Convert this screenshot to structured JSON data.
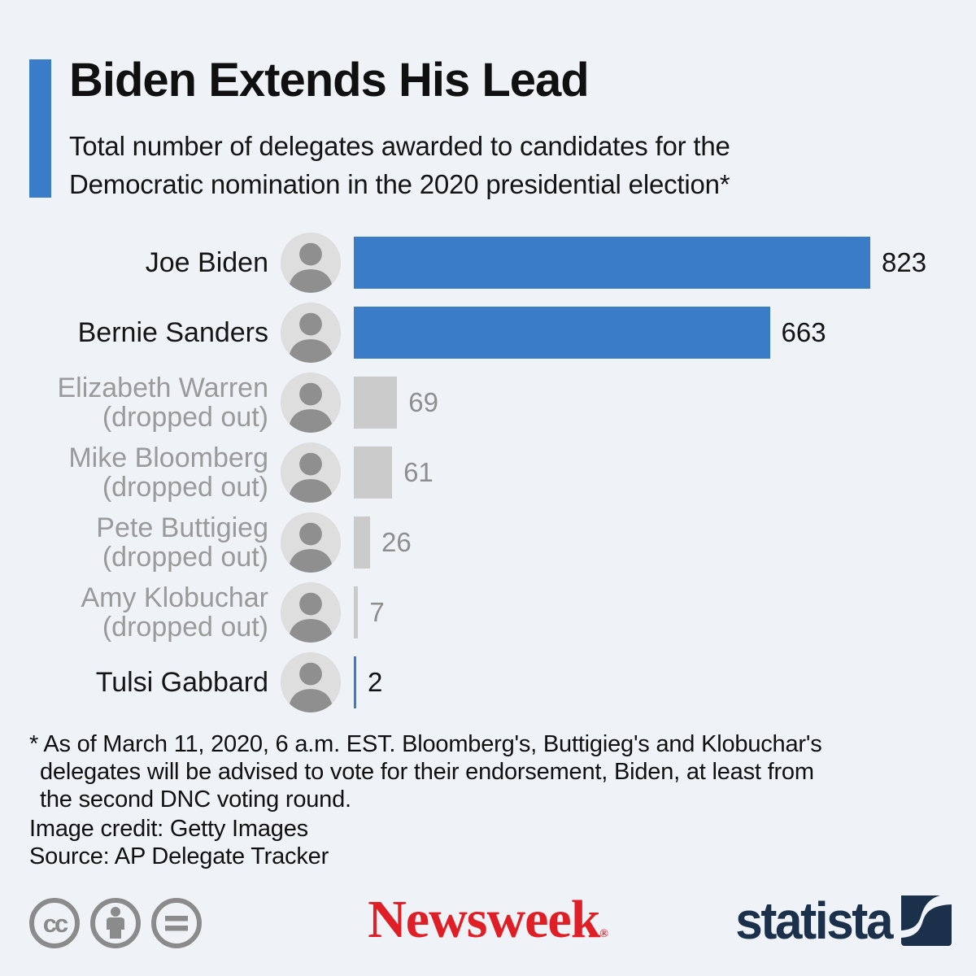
{
  "header": {
    "title": "Biden Extends His Lead",
    "subtitle": "Total number of delegates awarded to candidates for the Democratic nomination in the 2020 presidential election*"
  },
  "chart_data": {
    "type": "bar",
    "orientation": "horizontal",
    "title": "Biden Extends His Lead",
    "subtitle": "Total number of delegates awarded to candidates for the Democratic nomination in the 2020 presidential election*",
    "categories": [
      "Joe Biden",
      "Bernie Sanders",
      "Elizabeth Warren",
      "Mike Bloomberg",
      "Pete Buttigieg",
      "Amy Klobuchar",
      "Tulsi Gabbard"
    ],
    "values": [
      823,
      663,
      69,
      61,
      26,
      7,
      2
    ],
    "xlim": [
      0,
      823
    ],
    "axis_shown": false,
    "grid": false,
    "value_labels_shown": true,
    "legend": "none",
    "rows": [
      {
        "name": "Joe Biden",
        "status": "",
        "value": 823,
        "dropped_out": false
      },
      {
        "name": "Bernie Sanders",
        "status": "",
        "value": 663,
        "dropped_out": false
      },
      {
        "name": "Elizabeth Warren",
        "status": "(dropped out)",
        "value": 69,
        "dropped_out": true
      },
      {
        "name": "Mike Bloomberg",
        "status": "(dropped out)",
        "value": 61,
        "dropped_out": true
      },
      {
        "name": "Pete Buttigieg",
        "status": "(dropped out)",
        "value": 26,
        "dropped_out": true
      },
      {
        "name": "Amy Klobuchar",
        "status": "(dropped out)",
        "value": 7,
        "dropped_out": true
      },
      {
        "name": "Tulsi Gabbard",
        "status": "",
        "value": 2,
        "dropped_out": false
      }
    ]
  },
  "notes": {
    "footnote_line1": "* As of March 11, 2020, 6 a.m. EST. Bloomberg's, Buttigieg's and Klobuchar's",
    "footnote_line2": "delegates will be advised to vote for their endorsement, Biden, at least from",
    "footnote_line3": "the second DNC voting round.",
    "image_credit": "Image credit: Getty Images",
    "source": "Source: AP Delegate Tracker"
  },
  "footer": {
    "license_icons": [
      "cc-icon",
      "attribution-person-icon",
      "no-derivatives-equals-icon"
    ],
    "newsweek_logo_text": "Newsweek",
    "newsweek_reg_mark": "®",
    "statista_logo_text": "statista"
  },
  "colors": {
    "background": "#EFF3F7",
    "accent_blue": "#3A7CC8",
    "bar_blue": "#3A7CC8",
    "bar_gray": "#CBCBCB",
    "text_black": "#151515",
    "text_gray": "#9A9A9A",
    "value_gray": "#8E8E8E",
    "newsweek_red": "#E01E26",
    "statista_navy": "#1B304A",
    "cc_gray": "#8B8B8B"
  }
}
